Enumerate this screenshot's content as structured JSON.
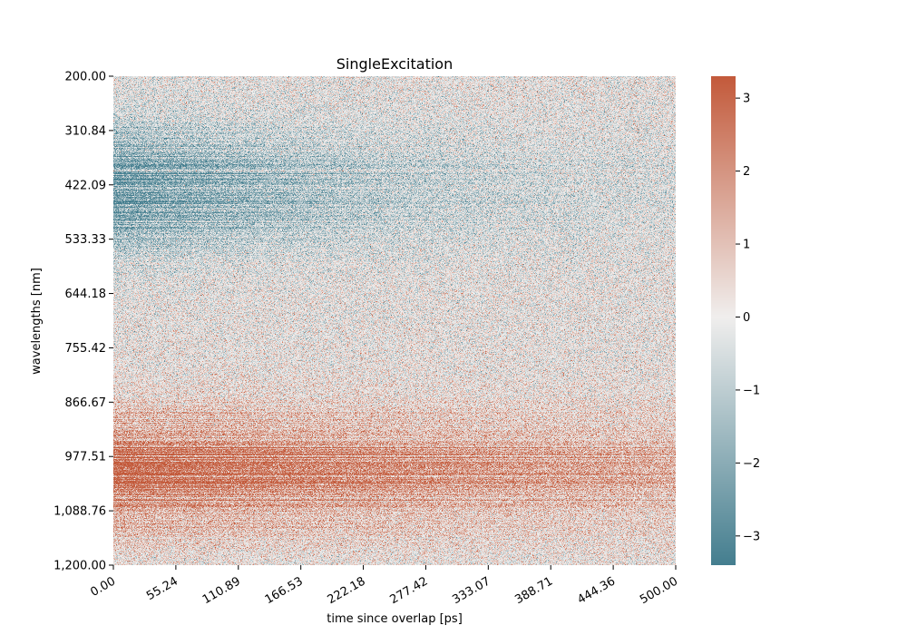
{
  "chart_data": {
    "type": "heatmap",
    "title": "SingleExcitation",
    "xlabel": "time since overlap [ps]",
    "ylabel": "wavelengths [nm]",
    "xlim": [
      0,
      500
    ],
    "ylim": [
      200,
      1200
    ],
    "x_tick_labels": [
      "0.00",
      "55.24",
      "110.89",
      "166.53",
      "222.18",
      "277.42",
      "333.07",
      "388.71",
      "444.36",
      "500.00"
    ],
    "y_tick_labels": [
      "200.00",
      "310.84",
      "422.09",
      "533.33",
      "644.18",
      "755.42",
      "866.67",
      "977.51",
      "1,088.76",
      "1,200.00"
    ],
    "colorbar": {
      "range": [
        -3.4,
        3.3
      ],
      "ticks": [
        -3,
        -2,
        -1,
        0,
        1,
        2,
        3
      ],
      "tick_labels": [
        "−3",
        "−2",
        "−1",
        "0",
        "1",
        "2",
        "3"
      ],
      "colormap": "diverging",
      "low_color": "#447e8f",
      "mid_color": "#f0eeed",
      "high_color": "#c35a3b"
    },
    "features": [
      {
        "name": "negative band",
        "wavelength_center": 430,
        "wavelength_width": 90,
        "peak_value": -2.6,
        "decay_time": 260
      },
      {
        "name": "positive band",
        "wavelength_center": 1010,
        "wavelength_width": 85,
        "peak_value": 2.6,
        "decay_time": 650
      }
    ],
    "grid": false,
    "legend": "none"
  }
}
